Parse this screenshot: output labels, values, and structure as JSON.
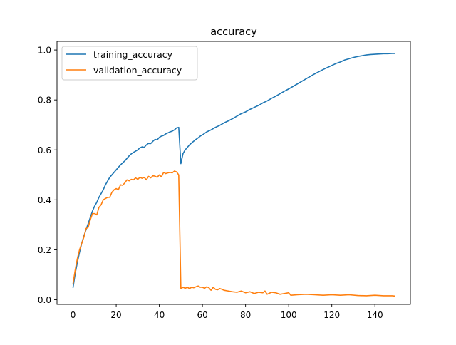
{
  "chart_data": {
    "type": "line",
    "title": "accuracy",
    "xlabel": "",
    "ylabel": "",
    "xlim": [
      -7.45,
      156.45
    ],
    "ylim": [
      -0.0185,
      1.0345
    ],
    "xticks": [
      0,
      20,
      40,
      60,
      80,
      100,
      120,
      140
    ],
    "xtick_labels": [
      "0",
      "20",
      "40",
      "60",
      "80",
      "100",
      "120",
      "140"
    ],
    "yticks": [
      0.0,
      0.2,
      0.4,
      0.6,
      0.8,
      1.0
    ],
    "ytick_labels": [
      "0.0",
      "0.2",
      "0.4",
      "0.6",
      "0.8",
      "1.0"
    ],
    "grid": false,
    "legend": {
      "position": "top-left"
    },
    "series": [
      {
        "name": "training_accuracy",
        "color": "#1f77b4",
        "points": [
          [
            0,
            0.05
          ],
          [
            1,
            0.105
          ],
          [
            2,
            0.15
          ],
          [
            3,
            0.19
          ],
          [
            4,
            0.225
          ],
          [
            5,
            0.255
          ],
          [
            6,
            0.28
          ],
          [
            7,
            0.305
          ],
          [
            8,
            0.33
          ],
          [
            9,
            0.355
          ],
          [
            10,
            0.375
          ],
          [
            11,
            0.39
          ],
          [
            12,
            0.41
          ],
          [
            13,
            0.425
          ],
          [
            14,
            0.44
          ],
          [
            15,
            0.46
          ],
          [
            16,
            0.475
          ],
          [
            17,
            0.49
          ],
          [
            18,
            0.5
          ],
          [
            19,
            0.51
          ],
          [
            20,
            0.52
          ],
          [
            21,
            0.53
          ],
          [
            22,
            0.54
          ],
          [
            23,
            0.548
          ],
          [
            24,
            0.556
          ],
          [
            25,
            0.566
          ],
          [
            26,
            0.576
          ],
          [
            27,
            0.584
          ],
          [
            28,
            0.59
          ],
          [
            29,
            0.595
          ],
          [
            30,
            0.6
          ],
          [
            31,
            0.608
          ],
          [
            32,
            0.612
          ],
          [
            33,
            0.61
          ],
          [
            34,
            0.62
          ],
          [
            35,
            0.626
          ],
          [
            36,
            0.625
          ],
          [
            37,
            0.634
          ],
          [
            38,
            0.642
          ],
          [
            39,
            0.64
          ],
          [
            40,
            0.65
          ],
          [
            41,
            0.655
          ],
          [
            42,
            0.658
          ],
          [
            43,
            0.664
          ],
          [
            44,
            0.668
          ],
          [
            45,
            0.672
          ],
          [
            46,
            0.675
          ],
          [
            47,
            0.68
          ],
          [
            48,
            0.688
          ],
          [
            49,
            0.69
          ],
          [
            50,
            0.545
          ],
          [
            51,
            0.585
          ],
          [
            52,
            0.6
          ],
          [
            53,
            0.61
          ],
          [
            54,
            0.62
          ],
          [
            55,
            0.628
          ],
          [
            56,
            0.635
          ],
          [
            57,
            0.642
          ],
          [
            58,
            0.648
          ],
          [
            59,
            0.655
          ],
          [
            60,
            0.66
          ],
          [
            62,
            0.672
          ],
          [
            64,
            0.68
          ],
          [
            66,
            0.69
          ],
          [
            68,
            0.698
          ],
          [
            70,
            0.708
          ],
          [
            72,
            0.716
          ],
          [
            74,
            0.725
          ],
          [
            76,
            0.735
          ],
          [
            78,
            0.745
          ],
          [
            80,
            0.752
          ],
          [
            82,
            0.762
          ],
          [
            84,
            0.77
          ],
          [
            86,
            0.778
          ],
          [
            88,
            0.788
          ],
          [
            90,
            0.796
          ],
          [
            92,
            0.806
          ],
          [
            94,
            0.815
          ],
          [
            96,
            0.825
          ],
          [
            98,
            0.835
          ],
          [
            100,
            0.844
          ],
          [
            102,
            0.854
          ],
          [
            104,
            0.864
          ],
          [
            106,
            0.874
          ],
          [
            108,
            0.884
          ],
          [
            110,
            0.894
          ],
          [
            112,
            0.904
          ],
          [
            114,
            0.913
          ],
          [
            116,
            0.922
          ],
          [
            118,
            0.93
          ],
          [
            120,
            0.938
          ],
          [
            122,
            0.946
          ],
          [
            124,
            0.952
          ],
          [
            126,
            0.96
          ],
          [
            128,
            0.965
          ],
          [
            130,
            0.97
          ],
          [
            132,
            0.974
          ],
          [
            134,
            0.977
          ],
          [
            136,
            0.98
          ],
          [
            138,
            0.982
          ],
          [
            140,
            0.983
          ],
          [
            142,
            0.984
          ],
          [
            144,
            0.985
          ],
          [
            146,
            0.985
          ],
          [
            148,
            0.986
          ],
          [
            149,
            0.986
          ]
        ]
      },
      {
        "name": "validation_accuracy",
        "color": "#ff7f0e",
        "points": [
          [
            0,
            0.065
          ],
          [
            1,
            0.12
          ],
          [
            2,
            0.165
          ],
          [
            3,
            0.2
          ],
          [
            4,
            0.225
          ],
          [
            5,
            0.25
          ],
          [
            6,
            0.285
          ],
          [
            7,
            0.29
          ],
          [
            8,
            0.32
          ],
          [
            9,
            0.345
          ],
          [
            10,
            0.345
          ],
          [
            11,
            0.34
          ],
          [
            12,
            0.37
          ],
          [
            13,
            0.38
          ],
          [
            14,
            0.4
          ],
          [
            15,
            0.405
          ],
          [
            16,
            0.41
          ],
          [
            17,
            0.41
          ],
          [
            18,
            0.43
          ],
          [
            19,
            0.44
          ],
          [
            20,
            0.445
          ],
          [
            21,
            0.44
          ],
          [
            22,
            0.46
          ],
          [
            23,
            0.458
          ],
          [
            24,
            0.468
          ],
          [
            25,
            0.48
          ],
          [
            26,
            0.476
          ],
          [
            27,
            0.482
          ],
          [
            28,
            0.48
          ],
          [
            29,
            0.488
          ],
          [
            30,
            0.482
          ],
          [
            31,
            0.49
          ],
          [
            32,
            0.486
          ],
          [
            33,
            0.49
          ],
          [
            34,
            0.48
          ],
          [
            35,
            0.494
          ],
          [
            36,
            0.488
          ],
          [
            37,
            0.496
          ],
          [
            38,
            0.495
          ],
          [
            39,
            0.49
          ],
          [
            40,
            0.5
          ],
          [
            41,
            0.492
          ],
          [
            42,
            0.51
          ],
          [
            43,
            0.505
          ],
          [
            44,
            0.508
          ],
          [
            45,
            0.51
          ],
          [
            46,
            0.508
          ],
          [
            47,
            0.515
          ],
          [
            48,
            0.512
          ],
          [
            49,
            0.5
          ],
          [
            50,
            0.045
          ],
          [
            51,
            0.05
          ],
          [
            52,
            0.046
          ],
          [
            53,
            0.05
          ],
          [
            54,
            0.045
          ],
          [
            55,
            0.05
          ],
          [
            56,
            0.048
          ],
          [
            57,
            0.052
          ],
          [
            58,
            0.055
          ],
          [
            59,
            0.05
          ],
          [
            60,
            0.05
          ],
          [
            61,
            0.046
          ],
          [
            62,
            0.052
          ],
          [
            63,
            0.048
          ],
          [
            64,
            0.038
          ],
          [
            65,
            0.05
          ],
          [
            66,
            0.042
          ],
          [
            67,
            0.04
          ],
          [
            68,
            0.045
          ],
          [
            69,
            0.042
          ],
          [
            70,
            0.038
          ],
          [
            72,
            0.035
          ],
          [
            74,
            0.032
          ],
          [
            76,
            0.03
          ],
          [
            78,
            0.035
          ],
          [
            80,
            0.028
          ],
          [
            82,
            0.032
          ],
          [
            84,
            0.025
          ],
          [
            86,
            0.03
          ],
          [
            88,
            0.028
          ],
          [
            89,
            0.035
          ],
          [
            90,
            0.022
          ],
          [
            92,
            0.03
          ],
          [
            94,
            0.028
          ],
          [
            96,
            0.022
          ],
          [
            98,
            0.025
          ],
          [
            100,
            0.028
          ],
          [
            101,
            0.018
          ],
          [
            104,
            0.02
          ],
          [
            108,
            0.022
          ],
          [
            112,
            0.02
          ],
          [
            116,
            0.018
          ],
          [
            120,
            0.02
          ],
          [
            124,
            0.018
          ],
          [
            128,
            0.02
          ],
          [
            132,
            0.017
          ],
          [
            136,
            0.016
          ],
          [
            140,
            0.018
          ],
          [
            144,
            0.016
          ],
          [
            148,
            0.016
          ],
          [
            149,
            0.015
          ]
        ]
      }
    ]
  }
}
